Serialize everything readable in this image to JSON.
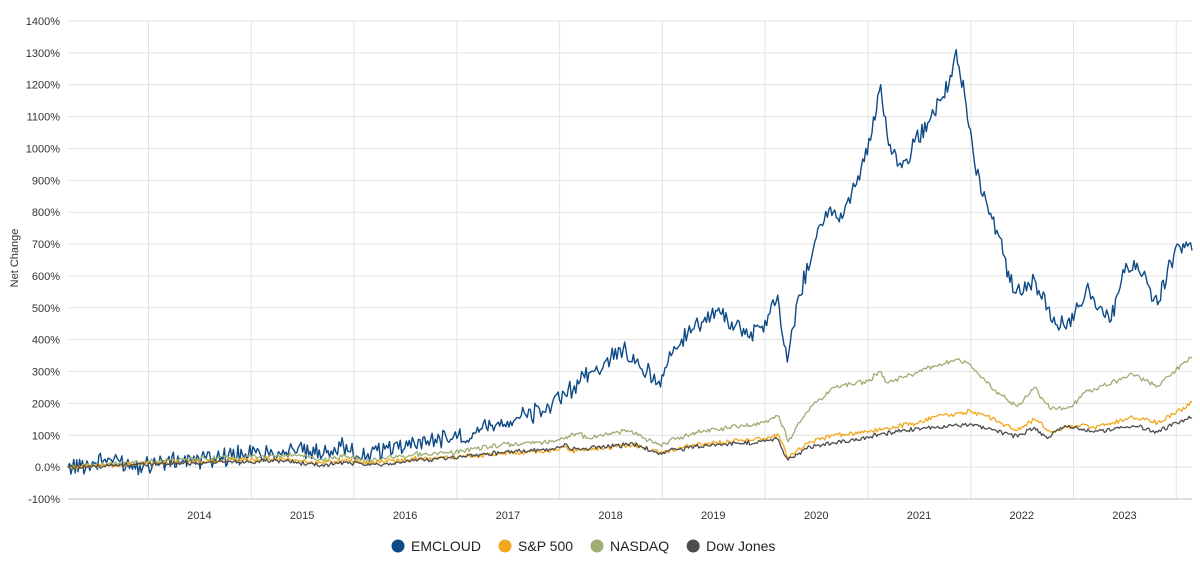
{
  "chart_data": {
    "type": "line",
    "title": "",
    "xlabel": "",
    "ylabel": "Net Change",
    "x_range": [
      "2013-03-21",
      "2024-02-26"
    ],
    "ylim": [
      -100,
      1400
    ],
    "y_ticks": [
      {
        "value": 1400,
        "label": "1400%"
      },
      {
        "value": 1300,
        "label": "1300%"
      },
      {
        "value": 1200,
        "label": "1200%"
      },
      {
        "value": 1100,
        "label": "1100%"
      },
      {
        "value": 1000,
        "label": "1000%"
      },
      {
        "value": 900,
        "label": "900%"
      },
      {
        "value": 800,
        "label": "800%"
      },
      {
        "value": 700,
        "label": "700%"
      },
      {
        "value": 600,
        "label": "600%"
      },
      {
        "value": 500,
        "label": "500%"
      },
      {
        "value": 400,
        "label": "400%"
      },
      {
        "value": 300,
        "label": "300%"
      },
      {
        "value": 200,
        "label": "200%"
      },
      {
        "value": 100,
        "label": "100%"
      },
      {
        "value": 0,
        "label": "0.0%"
      },
      {
        "value": -100,
        "label": "-100%"
      }
    ],
    "x_ticks": [
      "2014",
      "2015",
      "2016",
      "2017",
      "2018",
      "2019",
      "2020",
      "2021",
      "2022",
      "2023"
    ],
    "grid": true,
    "legend_position": "bottom-center",
    "series": [
      {
        "name": "EMCLOUD",
        "color": "#0e4a86",
        "points": [
          [
            "2013-03-21",
            0
          ],
          [
            "2013-06-01",
            10
          ],
          [
            "2013-09-01",
            28
          ],
          [
            "2013-10-15",
            12
          ],
          [
            "2013-12-01",
            8
          ],
          [
            "2014-02-01",
            15
          ],
          [
            "2014-06-01",
            22
          ],
          [
            "2014-09-01",
            32
          ],
          [
            "2014-12-01",
            40
          ],
          [
            "2015-03-01",
            48
          ],
          [
            "2015-06-01",
            54
          ],
          [
            "2015-08-15",
            40
          ],
          [
            "2015-10-01",
            52
          ],
          [
            "2015-11-15",
            65
          ],
          [
            "2015-12-20",
            48
          ],
          [
            "2016-01-20",
            30
          ],
          [
            "2016-02-20",
            42
          ],
          [
            "2016-05-01",
            60
          ],
          [
            "2016-08-01",
            80
          ],
          [
            "2016-11-01",
            90
          ],
          [
            "2017-01-01",
            90
          ],
          [
            "2017-05-01",
            130
          ],
          [
            "2017-08-01",
            155
          ],
          [
            "2017-11-01",
            175
          ],
          [
            "2018-01-01",
            210
          ],
          [
            "2018-03-15",
            270
          ],
          [
            "2018-05-01",
            300
          ],
          [
            "2018-07-01",
            340
          ],
          [
            "2018-08-15",
            370
          ],
          [
            "2018-09-15",
            330
          ],
          [
            "2018-10-15",
            310
          ],
          [
            "2018-12-20",
            270
          ],
          [
            "2019-02-01",
            350
          ],
          [
            "2019-04-01",
            420
          ],
          [
            "2019-06-01",
            470
          ],
          [
            "2019-07-15",
            490
          ],
          [
            "2019-09-15",
            440
          ],
          [
            "2019-11-01",
            410
          ],
          [
            "2020-01-01",
            460
          ],
          [
            "2020-02-15",
            540
          ],
          [
            "2020-03-20",
            330
          ],
          [
            "2020-05-01",
            540
          ],
          [
            "2020-07-01",
            720
          ],
          [
            "2020-08-15",
            810
          ],
          [
            "2020-10-01",
            780
          ],
          [
            "2020-11-15",
            880
          ],
          [
            "2021-01-15",
            1050
          ],
          [
            "2021-02-15",
            1200
          ],
          [
            "2021-03-15",
            1010
          ],
          [
            "2021-05-01",
            940
          ],
          [
            "2021-06-15",
            1020
          ],
          [
            "2021-08-01",
            1080
          ],
          [
            "2021-09-15",
            1150
          ],
          [
            "2021-10-15",
            1200
          ],
          [
            "2021-11-10",
            1310
          ],
          [
            "2021-12-10",
            1170
          ],
          [
            "2022-01-15",
            950
          ],
          [
            "2022-03-01",
            820
          ],
          [
            "2022-04-15",
            720
          ],
          [
            "2022-05-20",
            580
          ],
          [
            "2022-07-01",
            540
          ],
          [
            "2022-08-15",
            590
          ],
          [
            "2022-10-01",
            500
          ],
          [
            "2022-11-15",
            440
          ],
          [
            "2023-01-01",
            460
          ],
          [
            "2023-02-15",
            560
          ],
          [
            "2023-04-01",
            500
          ],
          [
            "2023-05-15",
            460
          ],
          [
            "2023-07-01",
            610
          ],
          [
            "2023-08-15",
            640
          ],
          [
            "2023-10-01",
            560
          ],
          [
            "2023-11-01",
            520
          ],
          [
            "2023-12-01",
            620
          ],
          [
            "2024-01-15",
            690
          ],
          [
            "2024-02-26",
            680
          ]
        ]
      },
      {
        "name": "S&P 500",
        "color": "#f2a81d",
        "points": [
          [
            "2013-03-21",
            0
          ],
          [
            "2013-09-01",
            6
          ],
          [
            "2014-01-01",
            12
          ],
          [
            "2014-09-01",
            20
          ],
          [
            "2015-05-01",
            26
          ],
          [
            "2015-08-25",
            12
          ],
          [
            "2015-12-01",
            22
          ],
          [
            "2016-02-15",
            12
          ],
          [
            "2016-08-01",
            26
          ],
          [
            "2016-12-01",
            30
          ],
          [
            "2017-06-01",
            42
          ],
          [
            "2017-12-01",
            52
          ],
          [
            "2018-01-25",
            65
          ],
          [
            "2018-02-10",
            50
          ],
          [
            "2018-09-20",
            70
          ],
          [
            "2018-12-24",
            45
          ],
          [
            "2019-04-30",
            70
          ],
          [
            "2019-12-31",
            90
          ],
          [
            "2020-02-19",
            100
          ],
          [
            "2020-03-23",
            30
          ],
          [
            "2020-06-08",
            80
          ],
          [
            "2020-09-01",
            100
          ],
          [
            "2020-12-31",
            110
          ],
          [
            "2021-06-30",
            140
          ],
          [
            "2021-09-01",
            160
          ],
          [
            "2022-01-01",
            175
          ],
          [
            "2022-03-01",
            160
          ],
          [
            "2022-06-15",
            115
          ],
          [
            "2022-08-15",
            150
          ],
          [
            "2022-10-12",
            110
          ],
          [
            "2023-02-01",
            135
          ],
          [
            "2023-03-15",
            125
          ],
          [
            "2023-07-31",
            155
          ],
          [
            "2023-10-27",
            140
          ],
          [
            "2023-12-31",
            170
          ],
          [
            "2024-02-26",
            205
          ]
        ]
      },
      {
        "name": "NASDAQ",
        "color": "#9fae75",
        "points": [
          [
            "2013-03-21",
            0
          ],
          [
            "2013-09-01",
            10
          ],
          [
            "2014-03-01",
            20
          ],
          [
            "2014-09-01",
            28
          ],
          [
            "2015-07-01",
            38
          ],
          [
            "2015-08-25",
            20
          ],
          [
            "2015-12-01",
            35
          ],
          [
            "2016-02-15",
            20
          ],
          [
            "2016-08-01",
            40
          ],
          [
            "2016-12-01",
            45
          ],
          [
            "2017-06-01",
            68
          ],
          [
            "2017-12-01",
            80
          ],
          [
            "2018-03-10",
            105
          ],
          [
            "2018-04-05",
            90
          ],
          [
            "2018-08-30",
            115
          ],
          [
            "2018-12-24",
            70
          ],
          [
            "2019-05-01",
            110
          ],
          [
            "2019-12-31",
            140
          ],
          [
            "2020-02-19",
            160
          ],
          [
            "2020-03-23",
            80
          ],
          [
            "2020-06-10",
            190
          ],
          [
            "2020-09-02",
            250
          ],
          [
            "2020-12-31",
            270
          ],
          [
            "2021-02-12",
            300
          ],
          [
            "2021-03-08",
            265
          ],
          [
            "2021-06-30",
            300
          ],
          [
            "2021-11-19",
            340
          ],
          [
            "2022-01-01",
            320
          ],
          [
            "2022-03-14",
            250
          ],
          [
            "2022-06-16",
            190
          ],
          [
            "2022-08-15",
            250
          ],
          [
            "2022-10-13",
            180
          ],
          [
            "2022-12-28",
            190
          ],
          [
            "2023-02-01",
            230
          ],
          [
            "2023-07-31",
            290
          ],
          [
            "2023-10-27",
            255
          ],
          [
            "2023-12-31",
            305
          ],
          [
            "2024-02-26",
            345
          ]
        ]
      },
      {
        "name": "Dow Jones",
        "color": "#4d4d4d",
        "points": [
          [
            "2013-03-21",
            0
          ],
          [
            "2013-09-01",
            5
          ],
          [
            "2014-01-01",
            10
          ],
          [
            "2014-09-01",
            15
          ],
          [
            "2015-05-01",
            20
          ],
          [
            "2015-08-25",
            5
          ],
          [
            "2015-12-01",
            15
          ],
          [
            "2016-02-15",
            5
          ],
          [
            "2016-08-01",
            20
          ],
          [
            "2016-12-01",
            30
          ],
          [
            "2017-06-01",
            45
          ],
          [
            "2017-12-01",
            55
          ],
          [
            "2018-01-25",
            72
          ],
          [
            "2018-02-10",
            55
          ],
          [
            "2018-09-20",
            72
          ],
          [
            "2018-12-24",
            45
          ],
          [
            "2019-04-30",
            65
          ],
          [
            "2019-12-31",
            80
          ],
          [
            "2020-02-12",
            90
          ],
          [
            "2020-03-23",
            22
          ],
          [
            "2020-06-08",
            65
          ],
          [
            "2020-09-01",
            75
          ],
          [
            "2020-12-31",
            95
          ],
          [
            "2021-05-01",
            115
          ],
          [
            "2021-09-01",
            125
          ],
          [
            "2022-01-04",
            135
          ],
          [
            "2022-03-01",
            120
          ],
          [
            "2022-06-17",
            95
          ],
          [
            "2022-08-15",
            125
          ],
          [
            "2022-09-30",
            90
          ],
          [
            "2022-12-01",
            130
          ],
          [
            "2023-03-15",
            110
          ],
          [
            "2023-07-31",
            130
          ],
          [
            "2023-10-27",
            110
          ],
          [
            "2023-12-31",
            140
          ],
          [
            "2024-02-26",
            155
          ]
        ]
      }
    ]
  }
}
